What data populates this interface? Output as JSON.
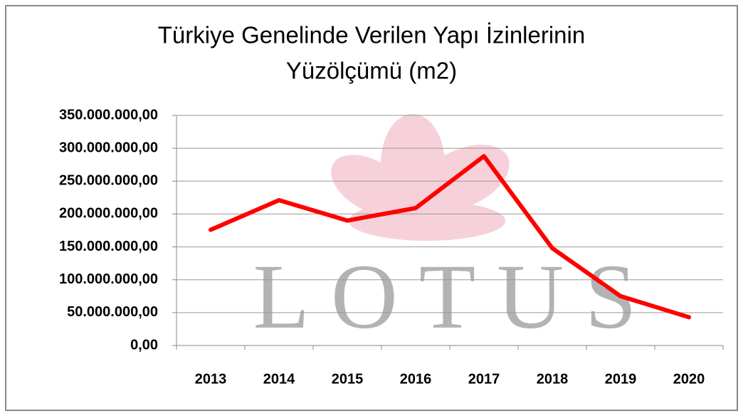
{
  "chart_data": {
    "type": "line",
    "title": [
      "Türkiye Genelinde Verilen Yapı İzinlerinin",
      "Yüzölçümü (m2)"
    ],
    "watermark": "LOTUS",
    "categories": [
      "2013",
      "2014",
      "2015",
      "2016",
      "2017",
      "2018",
      "2019",
      "2020"
    ],
    "values": [
      176000000,
      221000000,
      190000000,
      209000000,
      288000000,
      148000000,
      75000000,
      43000000
    ],
    "color": "#ff0000",
    "ylim": [
      0,
      350000000
    ],
    "yticks": [
      {
        "value": 0,
        "label": "0,00"
      },
      {
        "value": 50000000,
        "label": "50.000.000,00"
      },
      {
        "value": 100000000,
        "label": "100.000.000,00"
      },
      {
        "value": 150000000,
        "label": "150.000.000,00"
      },
      {
        "value": 200000000,
        "label": "200.000.000,00"
      },
      {
        "value": 250000000,
        "label": "250.000.000,00"
      },
      {
        "value": 300000000,
        "label": "300.000.000,00"
      },
      {
        "value": 350000000,
        "label": "350.000.000,00"
      }
    ],
    "grid": true
  }
}
